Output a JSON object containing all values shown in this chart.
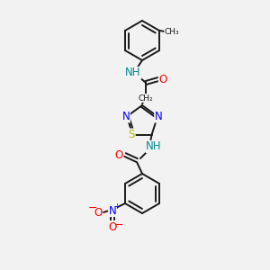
{
  "bg_color": "#f2f2f2",
  "bond_color": "#1a1a1a",
  "atom_colors": {
    "N": "#0000ff",
    "O": "#ff0000",
    "S": "#b8b800",
    "NH": "#008b8b",
    "C": "#1a1a1a"
  },
  "font_size_atom": 8.5,
  "lw": 1.4
}
